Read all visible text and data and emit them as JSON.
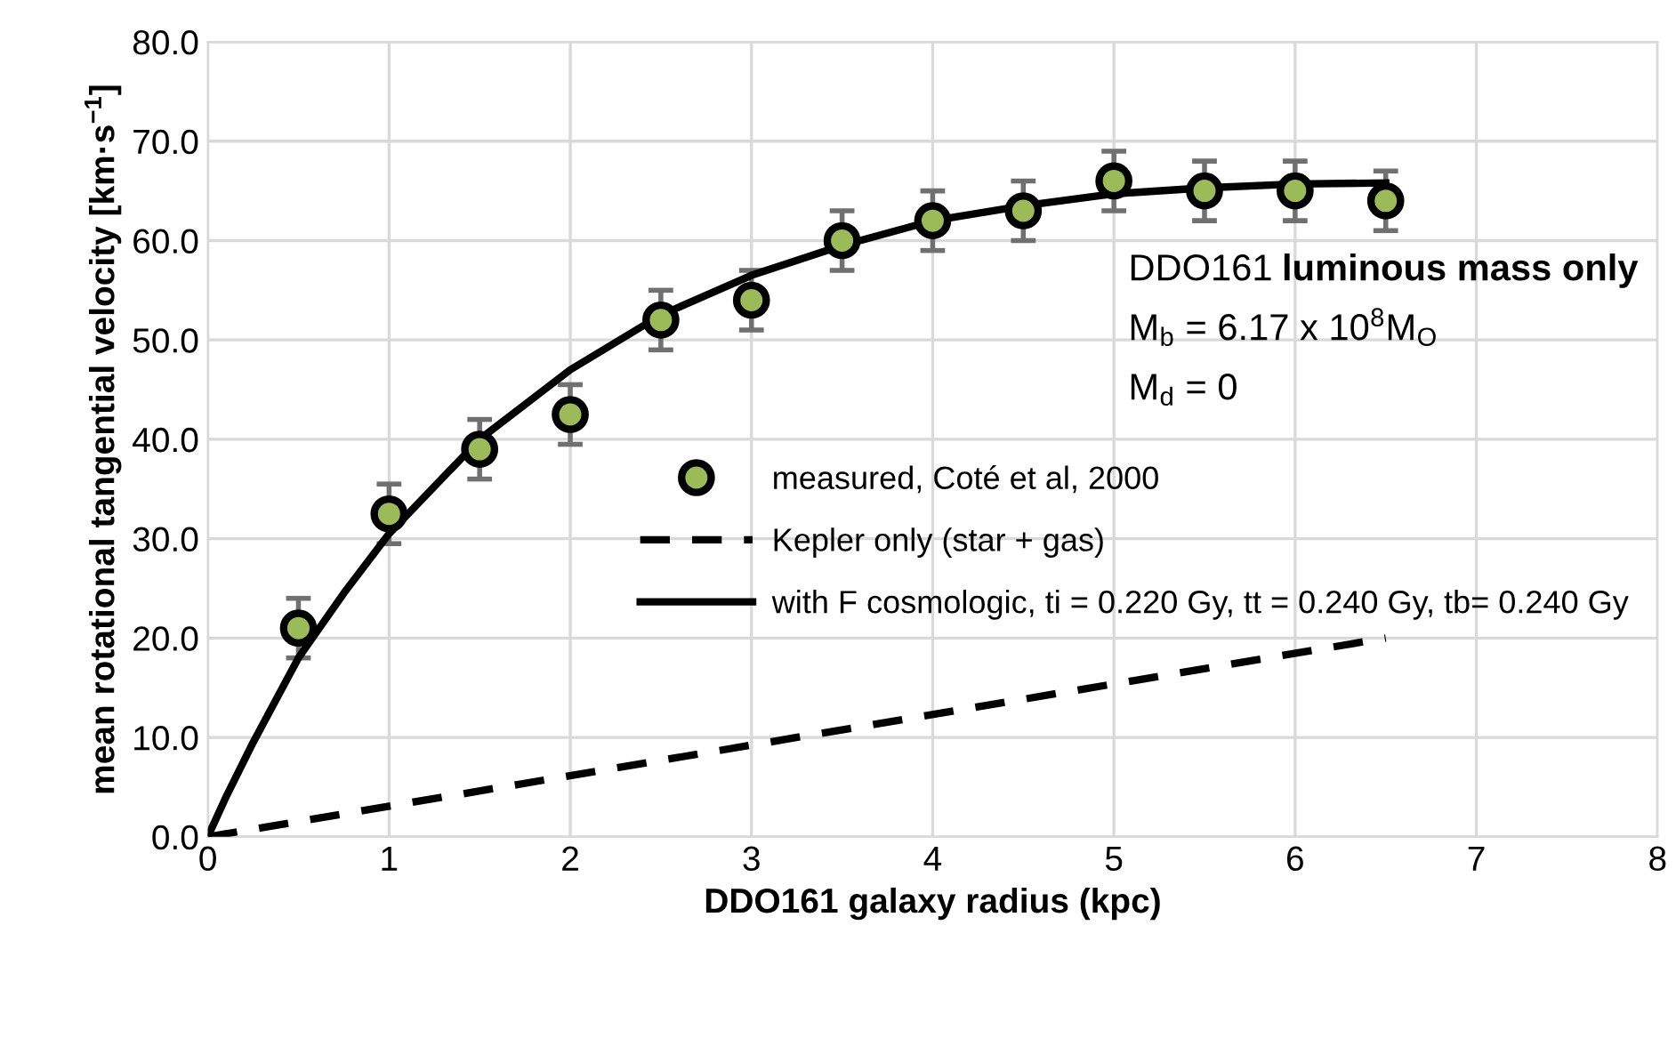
{
  "chart_data": {
    "type": "scatter",
    "xlabel": "DDO161 galaxy radius (kpc)",
    "ylabel": "mean rotational tangential velocity [km·s$^{−1}$]",
    "xlim": [
      0,
      8
    ],
    "xticks": [
      0,
      1,
      2,
      3,
      4,
      5,
      6,
      7,
      8
    ],
    "ylim": [
      0,
      80
    ],
    "yticks": [
      {
        "value": 0,
        "label": "0.0"
      },
      {
        "value": 10,
        "label": "10.0"
      },
      {
        "value": 20,
        "label": "20.0"
      },
      {
        "value": 30,
        "label": "30.0"
      },
      {
        "value": 40,
        "label": "40.0"
      },
      {
        "value": 50,
        "label": "50.0"
      },
      {
        "value": 60,
        "label": "60.0"
      },
      {
        "value": 70,
        "label": "70.0"
      },
      {
        "value": 80,
        "label": "80.0"
      }
    ],
    "grid": true,
    "legend": "center right",
    "series": [
      {
        "name": "measured, Coté et al, 2000",
        "marker": "circle",
        "color": "#9bbb59",
        "x": [
          0.5,
          1,
          1.5,
          2,
          2.5,
          3,
          3.5,
          4,
          4.5,
          5,
          5.5,
          6,
          6.5
        ],
        "values": [
          21,
          32.5,
          39,
          42.5,
          52,
          54,
          60,
          62,
          63,
          66,
          65,
          65,
          64
        ],
        "errors": [
          3,
          3,
          3,
          3,
          3,
          3,
          3,
          3,
          3,
          3,
          3,
          3,
          3
        ]
      },
      {
        "name": "Kepler only (star + gas)",
        "type": "line",
        "line_style": "dashed",
        "color": "#000000",
        "x": [
          0,
          6.5
        ],
        "values": [
          0,
          20
        ]
      },
      {
        "name": "with F cosmologic, ti = 0.220 Gy, tt = 0.240 Gy, tb= 0.240 Gy",
        "type": "line",
        "line_style": "solid",
        "color": "#000000",
        "x": [
          0,
          0.1,
          0.25,
          0.5,
          0.75,
          1,
          1.5,
          2,
          2.5,
          3,
          3.5,
          4,
          4.5,
          5,
          5.5,
          6,
          6.5
        ],
        "values": [
          0,
          4,
          9.5,
          18,
          24.5,
          30.5,
          40,
          47,
          52.5,
          56.5,
          59.5,
          62,
          63.5,
          64.7,
          65.3,
          65.7,
          65.8
        ]
      }
    ],
    "annotations": [
      "DDO161",
      "luminous mass only",
      "M$_{b}$ = 6.17 x 10$^{8}$M$_{O}$",
      "M$_{d}$ = 0"
    ]
  }
}
